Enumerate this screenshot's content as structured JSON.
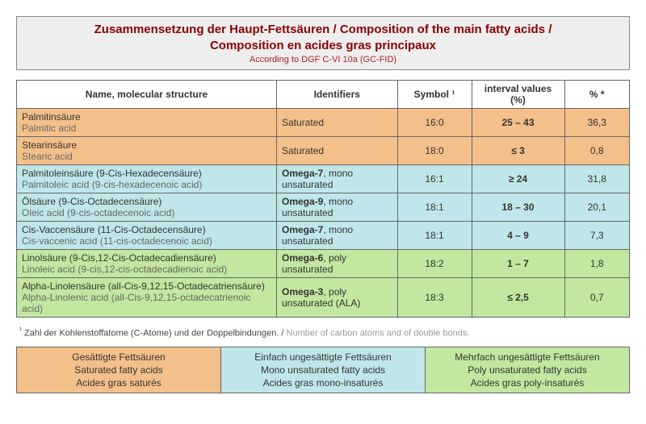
{
  "header": {
    "title_de_en": "Zusammensetzung der Haupt-Fettsäuren / Composition of the main fatty acids /",
    "title_fr": "Composition en acides gras principaux",
    "subtitle": "According to DGF C-VI 10a (GC-FID)"
  },
  "columns": {
    "name": "Name, molecular structure",
    "identifiers": "Identifiers",
    "symbol": "Symbol ¹",
    "interval": "interval values (%)",
    "percent": "% *"
  },
  "colors": {
    "saturated": "#f4c08a",
    "mono": "#bfe7e9",
    "poly": "#c3e7a0",
    "title_color": "#8b0000",
    "subtitle_color": "#b22222"
  },
  "rows": [
    {
      "cat": "sat",
      "name1": "Palmitinsäure",
      "name2": "Palmitic acid",
      "id_bold": "",
      "id_rest": "Saturated",
      "symbol": "16:0",
      "interval": "25 – 43",
      "percent": "36,3"
    },
    {
      "cat": "sat",
      "name1": "Stearinsäure",
      "name2": "Stearic acid",
      "id_bold": "",
      "id_rest": "Saturated",
      "symbol": "18:0",
      "interval": "≤ 3",
      "percent": "0,8"
    },
    {
      "cat": "mono",
      "name1": "Palmitoleinsäure (9-Cis-Hexadecensäure)",
      "name2": "Palmitoleic acid (9-cis-hexadecenoic acid)",
      "id_bold": "Omega-7",
      "id_rest": ", mono unsaturated",
      "symbol": "16:1",
      "interval": "≥ 24",
      "percent": "31,8"
    },
    {
      "cat": "mono",
      "name1": "Ölsäure (9-Cis-Octadecensäure)",
      "name2": "Oleic acid (9-cis-octadecenoic acid)",
      "id_bold": "Omega-9",
      "id_rest": ", mono unsaturated",
      "symbol": "18:1",
      "interval": "18 – 30",
      "percent": "20,1"
    },
    {
      "cat": "mono",
      "name1": "Cis-Vaccensäure (11-Cis-Octadecensäure)",
      "name2": "Cis-vaccenic acid (11-cis-octadecenoic acid)",
      "id_bold": "Omega-7",
      "id_rest": ", mono unsaturated",
      "symbol": "18:1",
      "interval": "4 – 9",
      "percent": "7,3"
    },
    {
      "cat": "poly",
      "name1": "Linolsäure (9-Cis,12-Cis-Octadecadiensäure)",
      "name2": "Linoleic acid (9-cis,12-cis-octadecadienoic acid)",
      "id_bold": "Omega-6",
      "id_rest": ", poly unsaturated",
      "symbol": "18:2",
      "interval": "1 – 7",
      "percent": "1,8"
    },
    {
      "cat": "poly",
      "name1": "Alpha-Linolensäure (all-Cis-9,12,15-Octadecatriensäure)",
      "name2": "Alpha-Linolenic acid (all-Cis-9,12,15-octadecatrienoic acid)",
      "id_bold": "Omega-3",
      "id_rest": ", poly unsaturated (ALA)",
      "symbol": "18:3",
      "interval": "≤ 2,5",
      "percent": "0,7"
    }
  ],
  "footnote": {
    "sup": "¹",
    "de": " Zahl der Kohlenstoffatome (C-Atome) und der Doppelbindungen. / ",
    "en": "Number of carbon atoms and of double bonds."
  },
  "legend": {
    "sat": {
      "de": "Gesättigte Fettsäuren",
      "en": "Saturated fatty acids",
      "fr": "Acides gras saturés"
    },
    "mono": {
      "de": "Einfach ungesättigte Fettsäuren",
      "en": "Mono unsaturated fatty acids",
      "fr": "Acides gras mono-insaturés"
    },
    "poly": {
      "de": "Mehrfach ungesättigte Fettsäuren",
      "en": "Poly unsaturated fatty acids",
      "fr": "Acides gras poly-insaturés"
    }
  }
}
